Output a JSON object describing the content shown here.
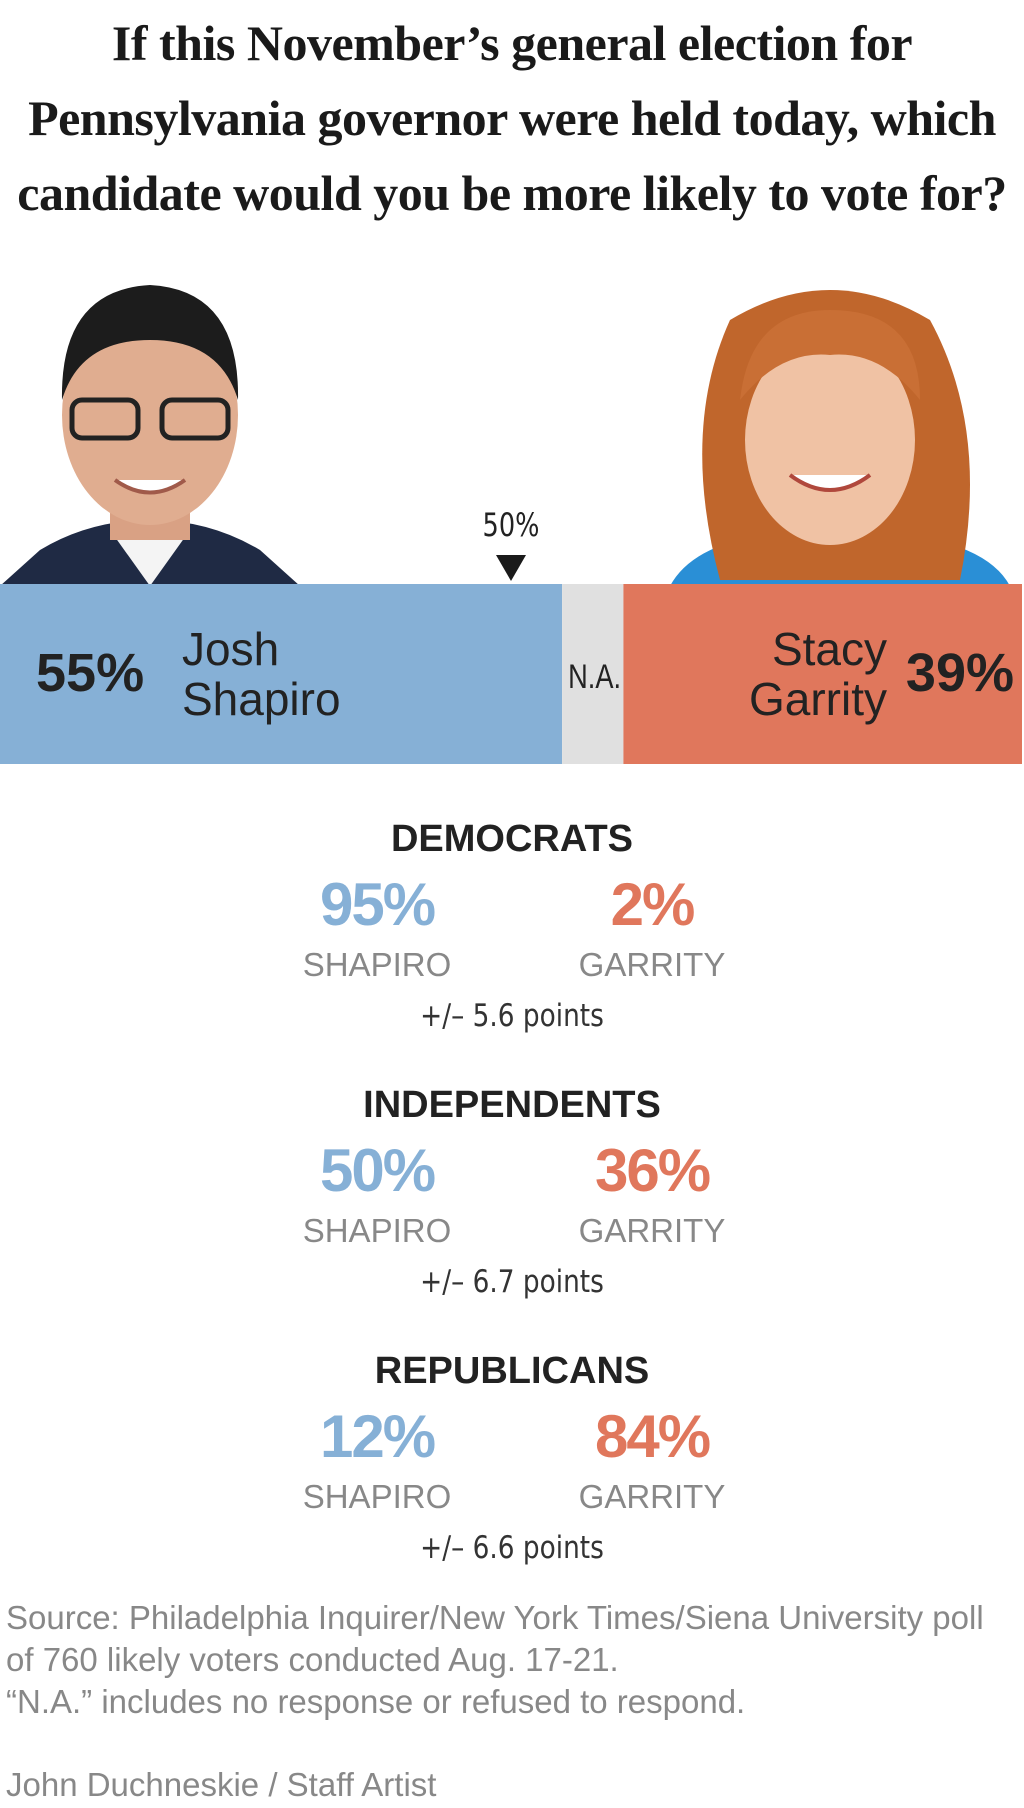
{
  "chart_data": {
    "type": "bar",
    "title": "If this November’s general election for Pennsylvania governor were held today, which candidate would you be more likely to vote for?",
    "xlim": [
      0,
      100
    ],
    "xticks": [
      {
        "value": 50,
        "label": "50%"
      }
    ],
    "series": [
      {
        "name": "Josh Shapiro",
        "color": "#86b0d6",
        "values": [
          55
        ],
        "value_labels": [
          "55%"
        ]
      },
      {
        "name": "N.A.",
        "color": "#e0e0e0",
        "values": [
          6
        ]
      },
      {
        "name": "Stacy Garrity",
        "color": "#e0775c",
        "values": [
          39
        ],
        "value_labels": [
          "39%"
        ]
      }
    ]
  },
  "groups": [
    {
      "title": "DEMOCRATS",
      "candidates": [
        {
          "name": "SHAPIRO",
          "value": 95,
          "label": "95%",
          "color": "#86b0d6"
        },
        {
          "name": "GARRITY",
          "value": 2,
          "label": "2%",
          "color": "#e0775c"
        }
      ],
      "margin": "+/– 5.6 points"
    },
    {
      "title": "INDEPENDENTS",
      "candidates": [
        {
          "name": "SHAPIRO",
          "value": 50,
          "label": "50%",
          "color": "#86b0d6"
        },
        {
          "name": "GARRITY",
          "value": 36,
          "label": "36%",
          "color": "#e0775c"
        }
      ],
      "margin": "+/– 6.7 points"
    },
    {
      "title": "REPUBLICANS",
      "candidates": [
        {
          "name": "SHAPIRO",
          "value": 12,
          "label": "12%",
          "color": "#86b0d6"
        },
        {
          "name": "GARRITY",
          "value": 84,
          "label": "84%",
          "color": "#e0775c"
        }
      ],
      "margin": "+/– 6.6 points"
    }
  ],
  "source": [
    "Source: Philadelphia Inquirer/New York Times/Siena University poll of 760 likely voters conducted Aug. 17-21.",
    "“N.A.” includes no response or refused to respond."
  ],
  "byline": "John Duchneskie / Staff Artist"
}
